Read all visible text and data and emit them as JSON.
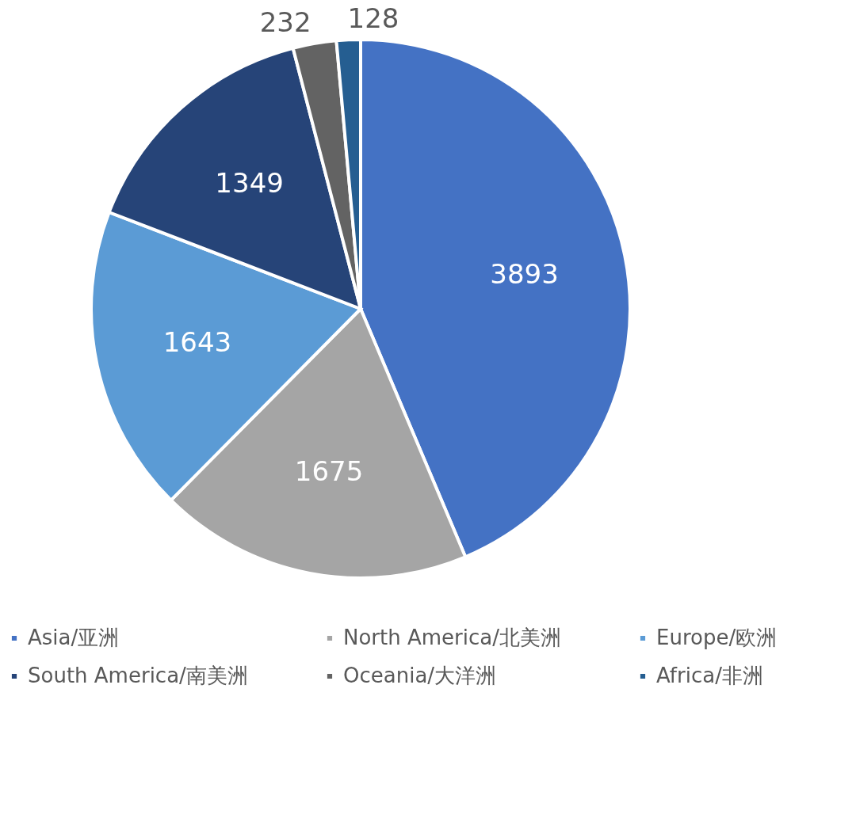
{
  "chart_data": {
    "type": "pie",
    "categories": [
      "Asia/亚洲",
      "North America/北美洲",
      "Europe/欧洲",
      "South America/南美洲",
      "Oceania/大洋洲",
      "Africa/非洲"
    ],
    "values": [
      3893,
      1675,
      1643,
      1349,
      232,
      128
    ],
    "colors": [
      "#4472c4",
      "#a5a5a5",
      "#5b9bd5",
      "#264478",
      "#636363",
      "#255e91"
    ],
    "data_labels": true,
    "legend": "bottom"
  }
}
